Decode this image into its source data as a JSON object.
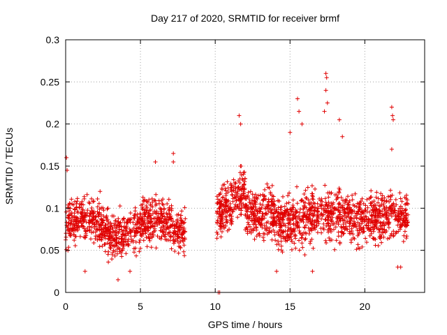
{
  "chart_data": {
    "type": "scatter",
    "title": "Day 217 of 2020, SRMTID for receiver brmf",
    "xlabel": "GPS time / hours",
    "ylabel": "SRMTID / TECUs",
    "xlim": [
      0,
      24
    ],
    "ylim": [
      0,
      0.3
    ],
    "xticks": [
      0,
      5,
      10,
      15,
      20
    ],
    "xtick_labels": [
      "0",
      "5",
      "10",
      "15",
      "20"
    ],
    "yticks": [
      0,
      0.05,
      0.1,
      0.15,
      0.2,
      0.25,
      0.3
    ],
    "ytick_labels": [
      "0",
      "0.05",
      "0.1",
      "0.15",
      "0.2",
      "0.25",
      "0.3"
    ],
    "grid": true,
    "marker": "plus",
    "color": "#e00000",
    "series": [
      {
        "name": "SRMTID",
        "segments": [
          {
            "x_start": 0.0,
            "x_end": 8.0,
            "typical_min": 0.04,
            "typical_max": 0.13
          },
          {
            "x_start": 10.1,
            "x_end": 22.9,
            "typical_min": 0.04,
            "typical_max": 0.15
          }
        ],
        "notable_points": [
          [
            0.05,
            0.16
          ],
          [
            0.1,
            0.145
          ],
          [
            2.3,
            0.12
          ],
          [
            3.5,
            0.015
          ],
          [
            6.0,
            0.155
          ],
          [
            7.2,
            0.165
          ],
          [
            7.2,
            0.155
          ],
          [
            10.2,
            0.0
          ],
          [
            10.3,
            0.0
          ],
          [
            11.6,
            0.21
          ],
          [
            11.7,
            0.2
          ],
          [
            15.0,
            0.19
          ],
          [
            15.5,
            0.23
          ],
          [
            15.6,
            0.215
          ],
          [
            15.8,
            0.2
          ],
          [
            17.4,
            0.26
          ],
          [
            17.45,
            0.255
          ],
          [
            17.4,
            0.24
          ],
          [
            17.5,
            0.225
          ],
          [
            17.3,
            0.215
          ],
          [
            18.3,
            0.205
          ],
          [
            18.5,
            0.185
          ],
          [
            21.8,
            0.22
          ],
          [
            21.85,
            0.21
          ],
          [
            21.9,
            0.205
          ],
          [
            21.8,
            0.17
          ],
          [
            14.1,
            0.025
          ],
          [
            16.5,
            0.025
          ],
          [
            1.3,
            0.025
          ],
          [
            4.3,
            0.025
          ],
          [
            22.4,
            0.03
          ],
          [
            22.2,
            0.03
          ]
        ]
      }
    ]
  }
}
